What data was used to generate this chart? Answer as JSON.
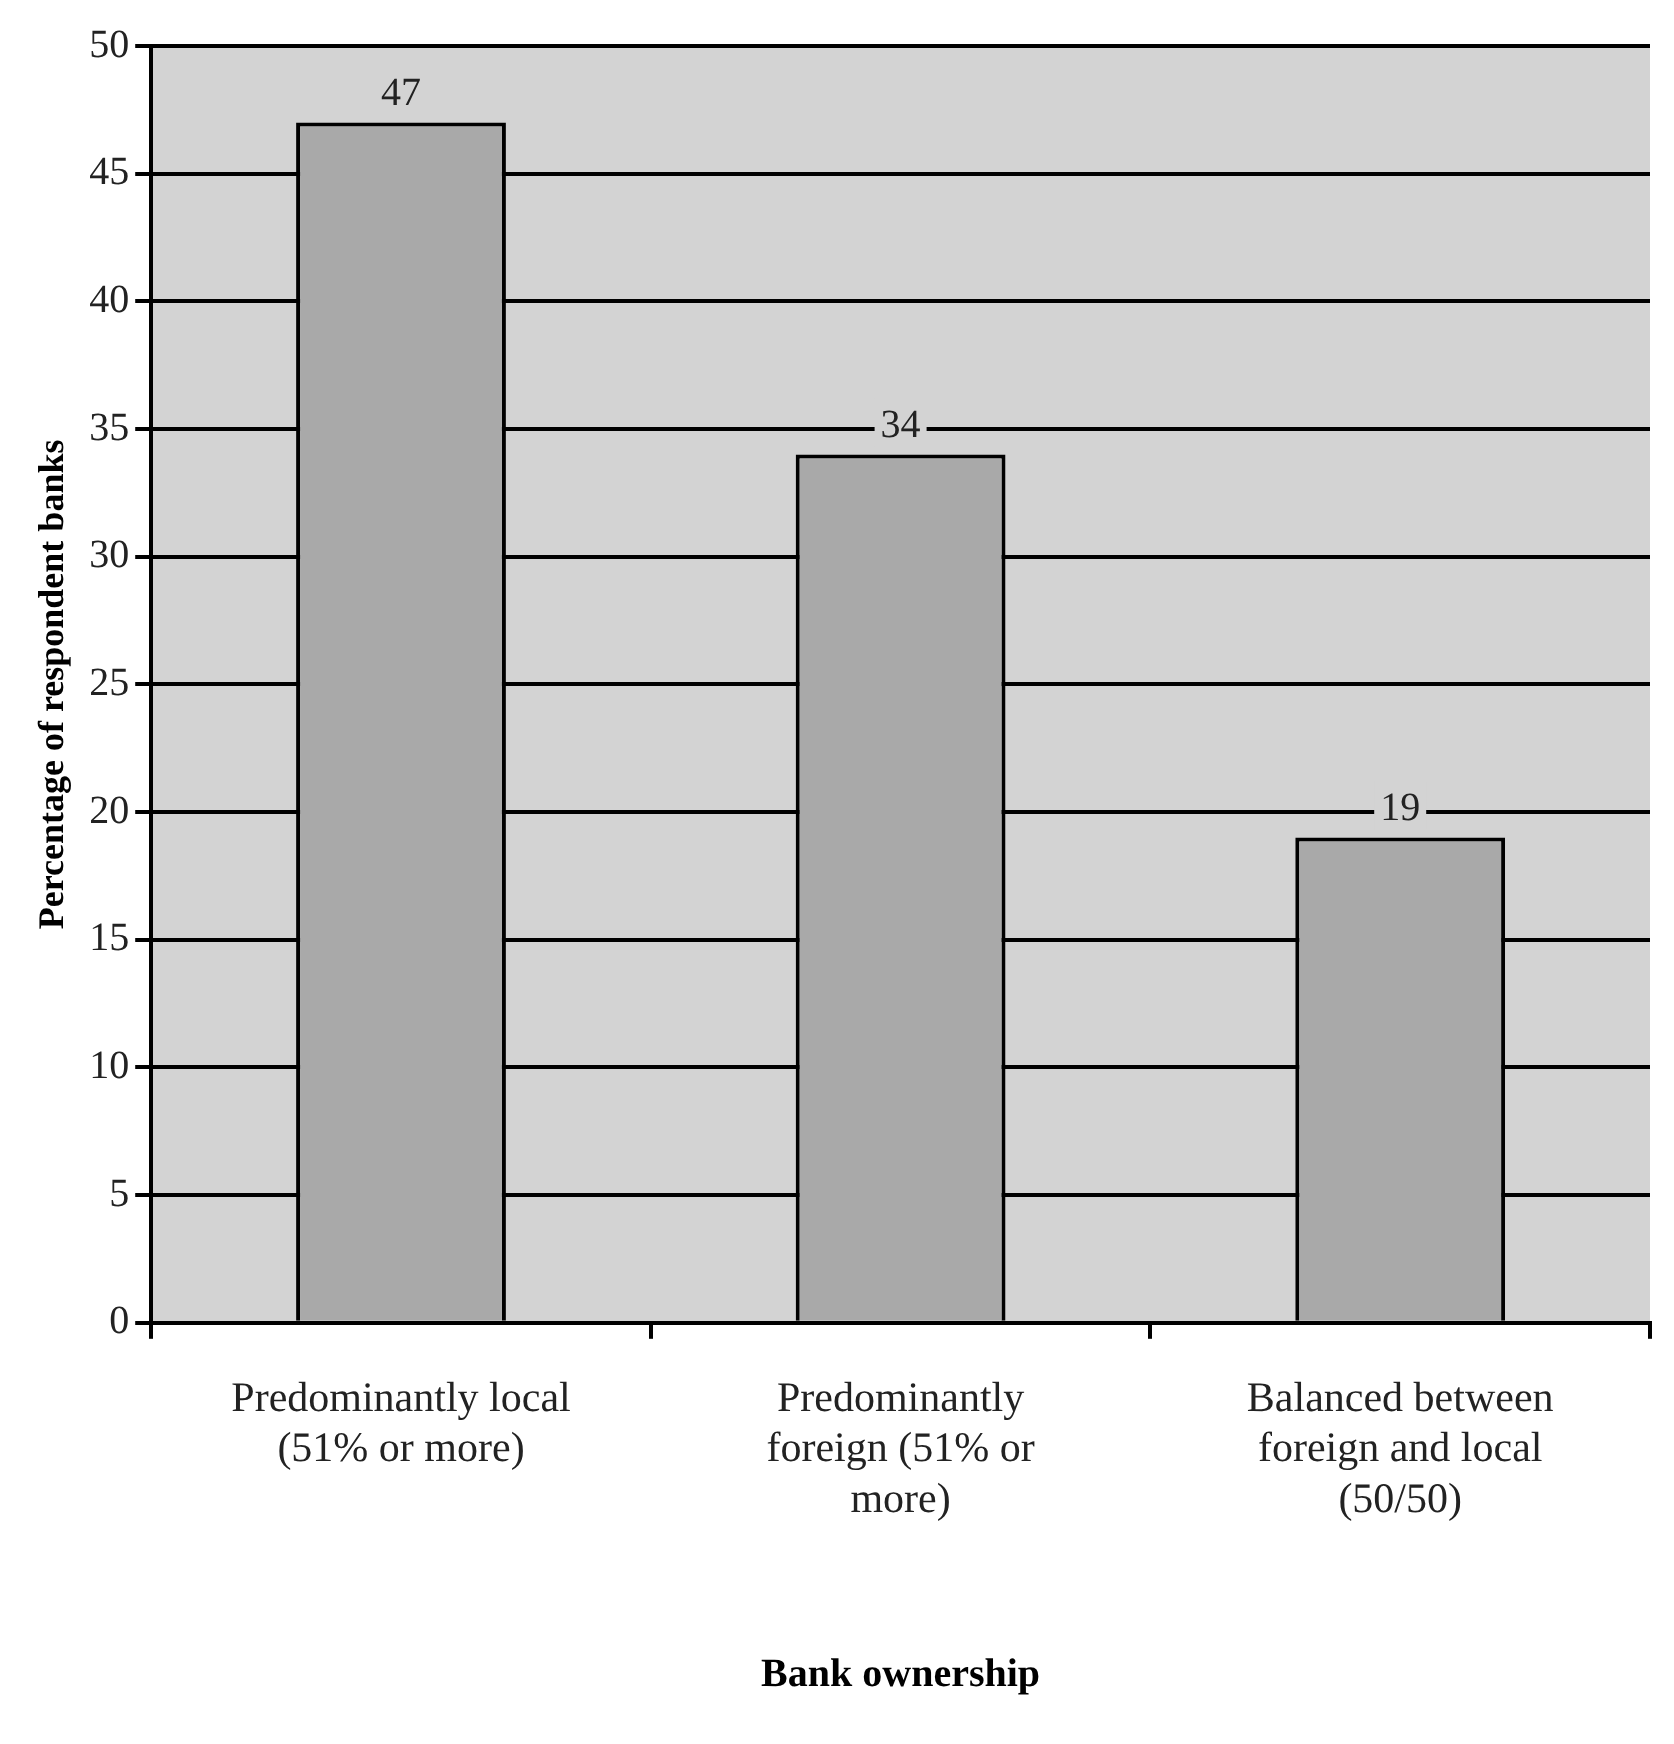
{
  "chart_data": {
    "type": "bar",
    "xlabel": "Bank ownership",
    "ylabel": "Percentage of respondent banks",
    "categories": [
      "Predominantly local (51% or more)",
      "Predominantly foreign (51% or more)",
      "Balanced between foreign and local (50/50)"
    ],
    "values": [
      47,
      34,
      19
    ],
    "color": "#a9a9a9",
    "ylim": [
      0,
      50
    ],
    "yticks": [
      0,
      5,
      10,
      15,
      20,
      25,
      30,
      35,
      40,
      45,
      50
    ],
    "grid": "y",
    "data_labels": true,
    "legend": false
  }
}
